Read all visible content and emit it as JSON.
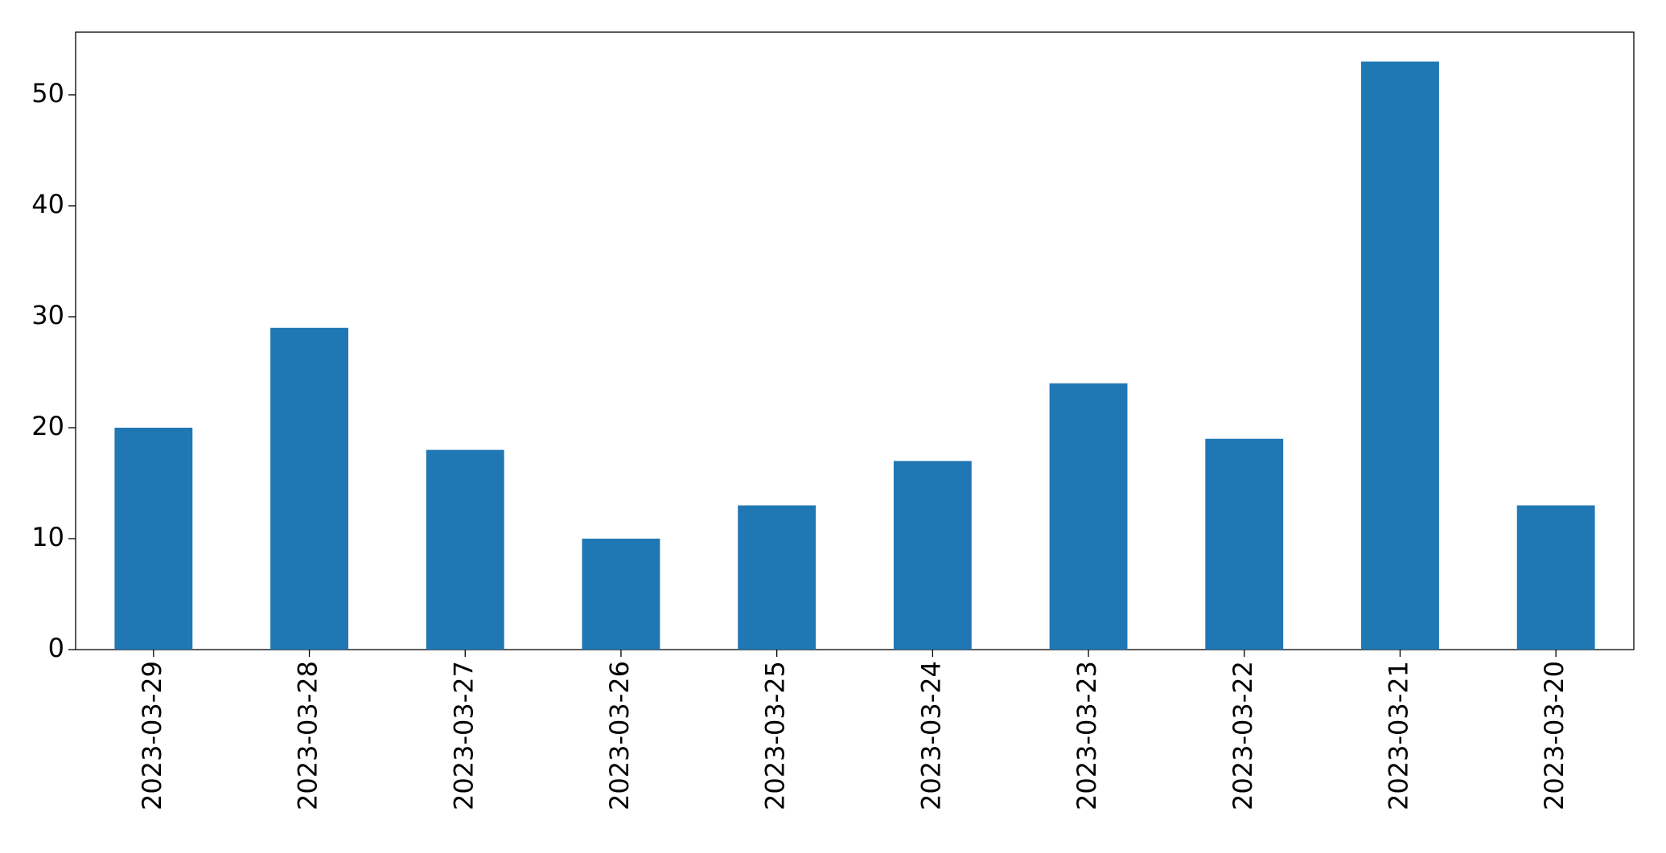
{
  "chart_data": {
    "type": "bar",
    "categories": [
      "2023-03-29",
      "2023-03-28",
      "2023-03-27",
      "2023-03-26",
      "2023-03-25",
      "2023-03-24",
      "2023-03-23",
      "2023-03-22",
      "2023-03-21",
      "2023-03-20"
    ],
    "values": [
      20,
      29,
      18,
      10,
      13,
      17,
      24,
      19,
      53,
      13
    ],
    "color": "#1f77b4",
    "ylim": [
      0,
      55.65
    ],
    "yticks": [
      0,
      10,
      20,
      30,
      40,
      50
    ],
    "grid": false
  }
}
